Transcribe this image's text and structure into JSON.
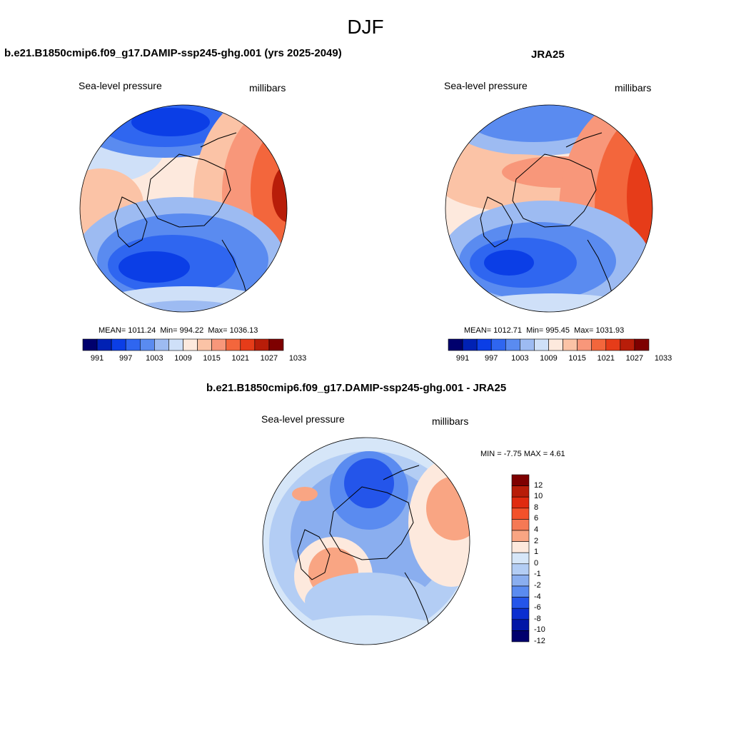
{
  "main_title": "DJF",
  "colors": {
    "seq": [
      "#00006d",
      "#0021b4",
      "#0b3ee6",
      "#2f66f0",
      "#5a8bf0",
      "#9dbbf2",
      "#cfe0f8",
      "#fde9dd",
      "#fbc3a6",
      "#f8977a",
      "#f3663c",
      "#e63c19",
      "#b81d09",
      "#7e0000"
    ],
    "diff": [
      "#7e0000",
      "#b81d09",
      "#e02b10",
      "#f3512a",
      "#f57955",
      "#f9a583",
      "#fde9dd",
      "#d6e6f8",
      "#b3cdf4",
      "#8aaeef",
      "#5a8bf0",
      "#2455ea",
      "#0b2fd0",
      "#0015a6",
      "#00006d"
    ]
  },
  "panel1": {
    "title": "b.e21.B1850cmip6.f09_g17.DAMIP-ssp245-ghg.001 (yrs 2025-2049)",
    "left_label": "Sea-level pressure",
    "right_label": "millibars",
    "mean_label": "MEAN=",
    "mean": "1011.24",
    "min_label": "Min=",
    "min": "994.22",
    "max_label": "Max=",
    "max": "1036.13",
    "ticks": [
      "991",
      "997",
      "1003",
      "1009",
      "1015",
      "1021",
      "1027",
      "1033"
    ]
  },
  "panel2": {
    "title": "JRA25",
    "left_label": "Sea-level pressure",
    "right_label": "millibars",
    "mean_label": "MEAN=",
    "mean": "1012.71",
    "min_label": "Min=",
    "min": "995.45",
    "max_label": "Max=",
    "max": "1031.93",
    "ticks": [
      "991",
      "997",
      "1003",
      "1009",
      "1015",
      "1021",
      "1027",
      "1033"
    ]
  },
  "panel3": {
    "title": "b.e21.B1850cmip6.f09_g17.DAMIP-ssp245-ghg.001 - JRA25",
    "left_label": "Sea-level pressure",
    "right_label": "millibars",
    "minmax_text": "MIN =  -7.75 MAX =   4.61",
    "ticks": [
      "12",
      "10",
      "8",
      "6",
      "4",
      "2",
      "1",
      "0",
      "-1",
      "-2",
      "-4",
      "-6",
      "-8",
      "-10",
      "-12"
    ]
  }
}
